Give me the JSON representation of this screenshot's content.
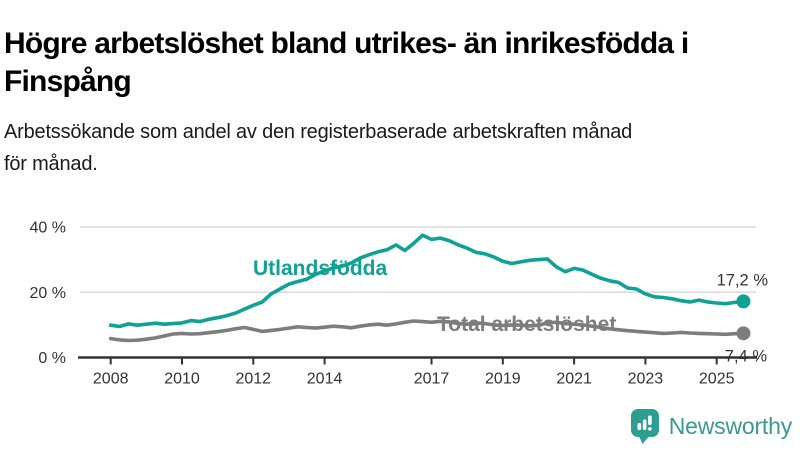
{
  "header": {
    "title_lines": [
      "Högre arbetslöshet bland utrikes- än inrikesfödda i",
      "Finspång"
    ],
    "subtitle_lines": [
      "Arbetssökande som andel av den registerbaserade arbetskraften månad",
      "för månad."
    ]
  },
  "footer": {
    "brand": "Newsworthy",
    "brand_color": "#3a9a8f",
    "logo_icon_color": "#2f9e92",
    "logo_icon": "bar-chart-speech-bubble-icon"
  },
  "colors": {
    "axis": "#333333",
    "gridline": "#dadada",
    "teal_series": "#10a195",
    "gray_series": "#7d7d7d"
  },
  "chart_data": {
    "type": "line",
    "x_ticks": [
      2008,
      2010,
      2012,
      2014,
      2017,
      2019,
      2021,
      2023,
      2025
    ],
    "y_ticks": [
      0,
      20,
      40
    ],
    "y_tick_suffix": " %",
    "xlim": [
      2007.8,
      2026.1
    ],
    "ylim": [
      0,
      42
    ],
    "grid": "horizontal",
    "x_start": 2008,
    "x_step_years": 0.25,
    "series": [
      {
        "name": "Utlandsfödda",
        "color": "#10a195",
        "end_label": "17,2 %",
        "values": [
          9.9,
          9.5,
          10.3,
          9.9,
          10.2,
          10.5,
          10.2,
          10.4,
          10.6,
          11.3,
          11.0,
          11.7,
          12.2,
          12.8,
          13.6,
          14.8,
          16.0,
          17.0,
          19.5,
          21.0,
          22.5,
          23.3,
          24.0,
          25.5,
          26.5,
          27.5,
          28.0,
          29.0,
          30.5,
          31.5,
          32.4,
          33.0,
          34.5,
          32.8,
          35.0,
          37.5,
          36.2,
          36.6,
          35.8,
          34.5,
          33.5,
          32.2,
          31.8,
          30.8,
          29.5,
          28.8,
          29.3,
          29.8,
          30.0,
          30.2,
          27.8,
          26.3,
          27.3,
          26.8,
          25.5,
          24.3,
          23.5,
          23.0,
          21.3,
          21.0,
          19.5,
          18.6,
          18.4,
          18.0,
          17.4,
          17.0,
          17.6,
          17.0,
          16.7,
          16.5,
          16.9,
          17.2
        ]
      },
      {
        "name": "Total arbetslöshet",
        "color": "#7d7d7d",
        "end_label": "7,4 %",
        "values": [
          5.8,
          5.4,
          5.2,
          5.3,
          5.6,
          6.0,
          6.6,
          7.2,
          7.4,
          7.2,
          7.3,
          7.6,
          7.9,
          8.3,
          8.8,
          9.2,
          8.6,
          8.0,
          8.3,
          8.6,
          9.0,
          9.4,
          9.2,
          9.0,
          9.3,
          9.6,
          9.4,
          9.1,
          9.6,
          10.0,
          10.2,
          9.9,
          10.3,
          10.8,
          11.2,
          11.0,
          10.8,
          11.1,
          10.9,
          10.4,
          10.2,
          10.6,
          10.4,
          10.0,
          9.8,
          10.0,
          9.9,
          9.7,
          9.9,
          10.6,
          10.8,
          10.4,
          10.2,
          10.0,
          9.6,
          9.2,
          8.8,
          8.5,
          8.2,
          8.0,
          7.8,
          7.6,
          7.4,
          7.5,
          7.7,
          7.5,
          7.4,
          7.3,
          7.2,
          7.1,
          7.3,
          7.4
        ]
      }
    ]
  }
}
